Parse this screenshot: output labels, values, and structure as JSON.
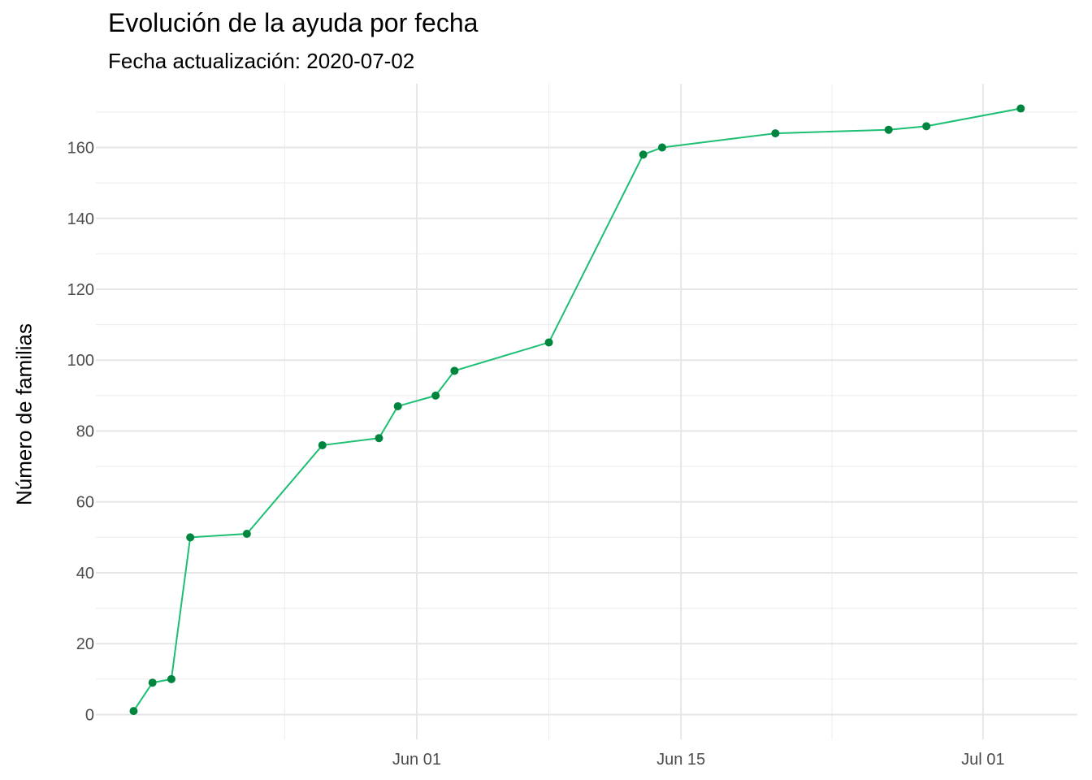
{
  "chart_data": {
    "type": "line",
    "title": "Evolución de la ayuda por fecha",
    "subtitle": "Fecha actualización: 2020-07-02",
    "xlabel": "",
    "ylabel": "Número de familias",
    "x_ticks": [
      {
        "date": "2020-06-01",
        "label": "Jun 01"
      },
      {
        "date": "2020-06-15",
        "label": "Jun 15"
      },
      {
        "date": "2020-07-01",
        "label": "Jul 01"
      }
    ],
    "y_ticks": [
      0,
      20,
      40,
      60,
      80,
      100,
      120,
      140,
      160
    ],
    "ylim": [
      -7,
      178
    ],
    "xlim": [
      "2020-05-15",
      "2020-07-06"
    ],
    "grid": true,
    "line_color": "#1dbf73",
    "point_color": "#00853e",
    "series": [
      {
        "points": [
          {
            "x": "2020-05-17",
            "y": 1
          },
          {
            "x": "2020-05-18",
            "y": 9
          },
          {
            "x": "2020-05-19",
            "y": 10
          },
          {
            "x": "2020-05-20",
            "y": 50
          },
          {
            "x": "2020-05-23",
            "y": 51
          },
          {
            "x": "2020-05-27",
            "y": 76
          },
          {
            "x": "2020-05-30",
            "y": 78
          },
          {
            "x": "2020-05-31",
            "y": 87
          },
          {
            "x": "2020-06-02",
            "y": 90
          },
          {
            "x": "2020-06-03",
            "y": 97
          },
          {
            "x": "2020-06-08",
            "y": 105
          },
          {
            "x": "2020-06-13",
            "y": 158
          },
          {
            "x": "2020-06-14",
            "y": 160
          },
          {
            "x": "2020-06-20",
            "y": 164
          },
          {
            "x": "2020-06-26",
            "y": 165
          },
          {
            "x": "2020-06-28",
            "y": 166
          },
          {
            "x": "2020-07-03",
            "y": 171
          }
        ]
      }
    ]
  }
}
